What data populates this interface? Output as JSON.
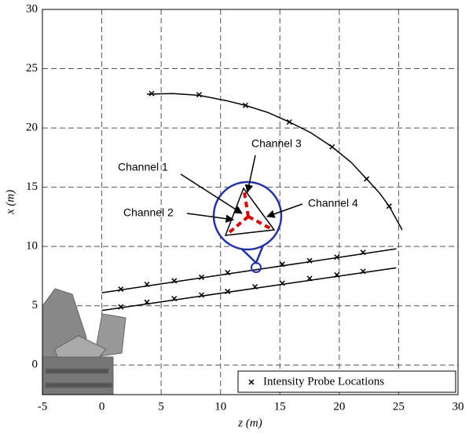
{
  "chart_data": {
    "type": "scatter",
    "xlabel": "z (m)",
    "ylabel": "x (m)",
    "xlim": [
      -5,
      30
    ],
    "ylim": [
      -2.5,
      30
    ],
    "xticks": [
      -5,
      0,
      5,
      10,
      15,
      20,
      25,
      30
    ],
    "yticks": [
      0,
      5,
      10,
      15,
      20,
      25,
      30
    ],
    "grid": true,
    "legend": "lower right",
    "series": [
      {
        "name": "Intensity Probe Locations",
        "color": "#000000",
        "x": [
          4.2,
          8.2,
          12.1,
          15.8,
          19.4,
          22.3,
          24.2,
          1.6,
          3.8,
          6.1,
          8.4,
          10.6,
          15.2,
          17.5,
          19.8,
          22.0,
          1.6,
          3.8,
          6.1,
          8.4,
          10.6,
          12.9,
          15.2,
          17.5,
          19.8,
          22.0
        ],
        "values": [
          22.9,
          22.8,
          21.9,
          20.5,
          18.4,
          15.7,
          13.4,
          6.4,
          6.8,
          7.1,
          7.4,
          7.8,
          8.5,
          8.8,
          9.1,
          9.5,
          4.9,
          5.3,
          5.6,
          5.9,
          6.2,
          6.6,
          6.9,
          7.3,
          7.6,
          7.9
        ]
      }
    ],
    "lines": [
      {
        "color": "#000000",
        "x": [
          3.8,
          6,
          8.2,
          10.5,
          12.1,
          14,
          15.8,
          17.6,
          19.4,
          21,
          22.3,
          23.4,
          24.2,
          25.3
        ],
        "values": [
          22.85,
          22.9,
          22.75,
          22.3,
          21.9,
          21.3,
          20.5,
          19.6,
          18.4,
          17.1,
          15.7,
          14.5,
          13.4,
          11.4
        ]
      },
      {
        "color": "#000000",
        "x": [
          0,
          24.8
        ],
        "values": [
          6.1,
          9.8
        ]
      },
      {
        "color": "#000000",
        "x": [
          0,
          24.8
        ],
        "values": [
          4.6,
          8.2
        ]
      }
    ],
    "annotations": [
      "Channel 1",
      "Channel 2",
      "Channel 3",
      "Channel 4"
    ]
  }
}
